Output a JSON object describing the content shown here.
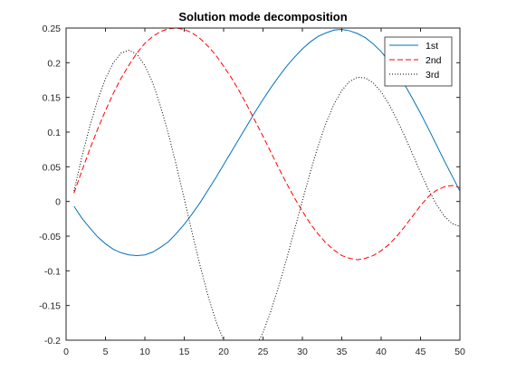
{
  "chart_data": {
    "type": "line",
    "title": "Solution mode decomposition",
    "xlabel": "",
    "ylabel": "",
    "xlim": [
      0,
      50
    ],
    "ylim": [
      -0.2,
      0.25
    ],
    "xticks": [
      0,
      5,
      10,
      15,
      20,
      25,
      30,
      35,
      40,
      45,
      50
    ],
    "xtick_labels": [
      "0",
      "5",
      "10",
      "15",
      "20",
      "25",
      "30",
      "35",
      "40",
      "45",
      "50"
    ],
    "yticks": [
      -0.2,
      -0.15,
      -0.1,
      -0.05,
      0,
      0.05,
      0.1,
      0.15,
      0.2,
      0.25
    ],
    "ytick_labels": [
      "-0.2",
      "-0.15",
      "-0.1",
      "-0.05",
      "0",
      "0.05",
      "0.1",
      "0.15",
      "0.2",
      "0.25"
    ],
    "grid": false,
    "legend_position": "top-right",
    "x": [
      1,
      2,
      3,
      4,
      5,
      6,
      7,
      8,
      9,
      10,
      11,
      12,
      13,
      14,
      15,
      16,
      17,
      18,
      19,
      20,
      21,
      22,
      23,
      24,
      25,
      26,
      27,
      28,
      29,
      30,
      31,
      32,
      33,
      34,
      35,
      36,
      37,
      38,
      39,
      40,
      41,
      42,
      43,
      44,
      45,
      46,
      47,
      48,
      49,
      50
    ],
    "series": [
      {
        "name": "1st",
        "color": "#0072BD",
        "line_style": "solid",
        "values": [
          -0.007,
          -0.024,
          -0.038,
          -0.051,
          -0.061,
          -0.069,
          -0.074,
          -0.077,
          -0.078,
          -0.077,
          -0.073,
          -0.066,
          -0.058,
          -0.046,
          -0.033,
          -0.018,
          -0.002,
          0.016,
          0.034,
          0.053,
          0.072,
          0.091,
          0.11,
          0.129,
          0.147,
          0.164,
          0.18,
          0.195,
          0.208,
          0.22,
          0.23,
          0.238,
          0.243,
          0.247,
          0.248,
          0.246,
          0.242,
          0.236,
          0.227,
          0.216,
          0.202,
          0.186,
          0.168,
          0.148,
          0.127,
          0.105,
          0.082,
          0.059,
          0.037,
          0.015
        ]
      },
      {
        "name": "2nd",
        "color": "#FF0000",
        "line_style": "dashed",
        "values": [
          0.012,
          0.044,
          0.075,
          0.104,
          0.131,
          0.156,
          0.178,
          0.197,
          0.214,
          0.228,
          0.238,
          0.245,
          0.249,
          0.25,
          0.248,
          0.243,
          0.235,
          0.224,
          0.211,
          0.195,
          0.178,
          0.159,
          0.138,
          0.116,
          0.094,
          0.071,
          0.048,
          0.026,
          0.005,
          -0.014,
          -0.032,
          -0.047,
          -0.06,
          -0.07,
          -0.078,
          -0.082,
          -0.084,
          -0.082,
          -0.078,
          -0.071,
          -0.062,
          -0.05,
          -0.036,
          -0.021,
          -0.006,
          0.007,
          0.016,
          0.021,
          0.023,
          0.02
        ]
      },
      {
        "name": "3rd",
        "color": "#000000",
        "line_style": "dotted",
        "values": [
          0.015,
          0.064,
          0.108,
          0.146,
          0.177,
          0.2,
          0.214,
          0.218,
          0.212,
          0.196,
          0.171,
          0.137,
          0.097,
          0.052,
          0.004,
          -0.045,
          -0.092,
          -0.135,
          -0.172,
          -0.2,
          -0.219,
          -0.227,
          -0.224,
          -0.211,
          -0.189,
          -0.158,
          -0.122,
          -0.083,
          -0.041,
          0.001,
          0.042,
          0.08,
          0.113,
          0.14,
          0.16,
          0.173,
          0.179,
          0.178,
          0.171,
          0.158,
          0.14,
          0.118,
          0.094,
          0.068,
          0.042,
          0.017,
          -0.004,
          -0.021,
          -0.032,
          -0.036
        ]
      }
    ]
  }
}
